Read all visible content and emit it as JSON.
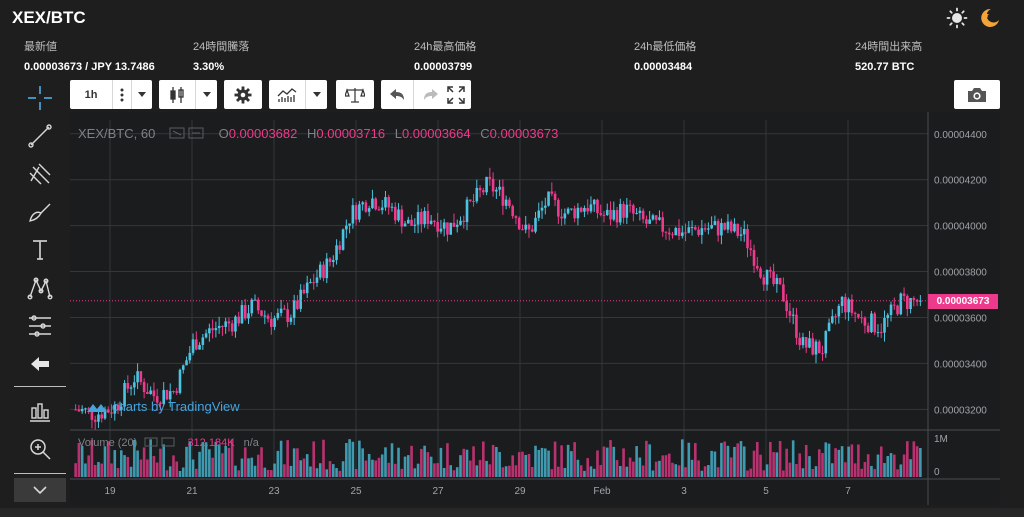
{
  "header": {
    "title": "XEX/BTC"
  },
  "stats": [
    {
      "label": "最新値",
      "value": "0.00003673 / JPY 13.7486"
    },
    {
      "label": "24時間騰落",
      "value": "3.30%"
    },
    {
      "label": "24h最高価格",
      "value": "0.00003799"
    },
    {
      "label": "24h最低価格",
      "value": "0.00003484"
    },
    {
      "label": "24時間出来高",
      "value": "520.77 BTC"
    }
  ],
  "toolbar": {
    "interval": "1h"
  },
  "legend": {
    "symbol": "XEX/BTC, 60",
    "o_label": "O",
    "o_value": "0.00003682",
    "h_label": "H",
    "h_value": "0.00003716",
    "l_label": "L",
    "l_value": "0.00003664",
    "c_label": "C",
    "c_value": "0.00003673",
    "volume_label": "Volume (20)",
    "volume_value": "312.184K",
    "volume_na": "n/a"
  },
  "watermark": "charts by TradingView",
  "last_price_tag": "0.00003673",
  "colors": {
    "up": "#4cc3e0",
    "down": "#ee3a8c",
    "background": "#1a1c1e",
    "grid": "#34373a",
    "axis_text": "#a0a4a8"
  },
  "icons": [
    "sun-icon",
    "moon-icon",
    "crosshair-icon",
    "trend-line-icon",
    "pitchfork-icon",
    "brush-icon",
    "text-icon",
    "pattern-icon",
    "fib-icon",
    "arrow-left-icon",
    "chart-settings-icon",
    "zoom-icon",
    "candles-icon",
    "gear-icon",
    "indicators-icon",
    "compare-icon",
    "undo-icon",
    "redo-icon",
    "fullscreen-icon",
    "camera-icon"
  ],
  "chart_data": {
    "type": "candlestick",
    "ylim": [
      3.11e-05,
      4.46e-05
    ],
    "yticks": [
      "0.00004400",
      "0.00004200",
      "0.00004000",
      "0.00003800",
      "0.00003600",
      "0.00003400",
      "0.00003200"
    ],
    "ytick_values": [
      4.4e-05,
      4.2e-05,
      4e-05,
      3.8e-05,
      3.6e-05,
      3.4e-05,
      3.2e-05
    ],
    "volume_ticks": [
      "1M",
      "0"
    ],
    "xticks": [
      "19",
      "21",
      "23",
      "25",
      "27",
      "29",
      "Feb",
      "3",
      "5",
      "7"
    ],
    "price_path": [
      {
        "x": "Jan 18 00:00",
        "y": 3.2e-05
      },
      {
        "x": "Jan 18 12:00",
        "y": 3.18e-05
      },
      {
        "x": "Jan 19 00:00",
        "y": 3.21e-05
      },
      {
        "x": "Jan 19 12:00",
        "y": 3.34e-05
      },
      {
        "x": "Jan 20 00:00",
        "y": 3.26e-05
      },
      {
        "x": "Jan 20 12:00",
        "y": 3.28e-05
      },
      {
        "x": "Jan 21 00:00",
        "y": 3.49e-05
      },
      {
        "x": "Jan 21 12:00",
        "y": 3.55e-05
      },
      {
        "x": "Jan 22 00:00",
        "y": 3.58e-05
      },
      {
        "x": "Jan 22 12:00",
        "y": 3.65e-05
      },
      {
        "x": "Jan 23 00:00",
        "y": 3.59e-05
      },
      {
        "x": "Jan 23 12:00",
        "y": 3.62e-05
      },
      {
        "x": "Jan 24 00:00",
        "y": 3.75e-05
      },
      {
        "x": "Jan 24 12:00",
        "y": 3.85e-05
      },
      {
        "x": "Jan 25 00:00",
        "y": 4.05e-05
      },
      {
        "x": "Jan 25 12:00",
        "y": 4.12e-05
      },
      {
        "x": "Jan 26 00:00",
        "y": 4.08e-05
      },
      {
        "x": "Jan 26 12:00",
        "y": 4e-05
      },
      {
        "x": "Jan 27 00:00",
        "y": 4.04e-05
      },
      {
        "x": "Jan 27 12:00",
        "y": 3.99e-05
      },
      {
        "x": "Jan 28 00:00",
        "y": 4.08e-05
      },
      {
        "x": "Jan 28 12:00",
        "y": 4.18e-05
      },
      {
        "x": "Jan 29 00:00",
        "y": 4.11e-05
      },
      {
        "x": "Jan 29 12:00",
        "y": 3.96e-05
      },
      {
        "x": "Jan 30 00:00",
        "y": 4.11e-05
      },
      {
        "x": "Jan 30 12:00",
        "y": 4.05e-05
      },
      {
        "x": "Jan 31 00:00",
        "y": 4.09e-05
      },
      {
        "x": "Jan 31 12:00",
        "y": 4.04e-05
      },
      {
        "x": "Feb 1 00:00",
        "y": 4.07e-05
      },
      {
        "x": "Feb 1 12:00",
        "y": 4.01e-05
      },
      {
        "x": "Feb 2 00:00",
        "y": 3.99e-05
      },
      {
        "x": "Feb 2 12:00",
        "y": 3.97e-05
      },
      {
        "x": "Feb 3 00:00",
        "y": 3.99e-05
      },
      {
        "x": "Feb 3 12:00",
        "y": 3.99e-05
      },
      {
        "x": "Feb 4 00:00",
        "y": 3.96e-05
      },
      {
        "x": "Feb 4 12:00",
        "y": 3.79e-05
      },
      {
        "x": "Feb 5 00:00",
        "y": 3.7e-05
      },
      {
        "x": "Feb 5 12:00",
        "y": 3.48e-05
      },
      {
        "x": "Feb 6 00:00",
        "y": 3.46e-05
      },
      {
        "x": "Feb 6 12:00",
        "y": 3.67e-05
      },
      {
        "x": "Feb 7 00:00",
        "y": 3.59e-05
      },
      {
        "x": "Feb 7 12:00",
        "y": 3.56e-05
      },
      {
        "x": "Feb 8 00:00",
        "y": 3.67e-05
      },
      {
        "x": "Feb 8 06:00",
        "y": 3.67e-05
      }
    ],
    "last_price": 3.673e-05,
    "ymax_volume": 1000000
  }
}
